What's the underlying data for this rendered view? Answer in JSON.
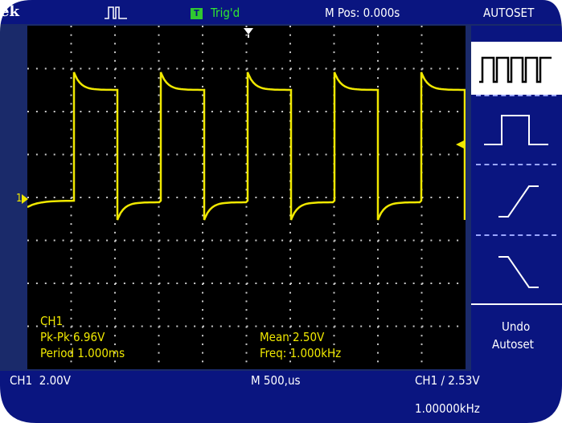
{
  "header": {
    "brand": "ek",
    "acq_icon": "acquisition-waveform-icon",
    "trigger_flag": "T",
    "trigger_status": "Trig'd",
    "position": "M Pos: 0.000s",
    "menu_title": "AUTOSET"
  },
  "measurements": {
    "channel": "CH1",
    "pk_pk": "Pk-Pk 6.96V",
    "period": "Period 1.000ms",
    "mean": "Mean 2.50V",
    "freq": "Freq: 1.000kHz"
  },
  "status": {
    "ch1_scale": "CH1  2.00V",
    "timebase": "M 500,us",
    "trigger": "CH1 ∕ 2.53V",
    "trigger_freq": "1.00000kHz"
  },
  "menu": {
    "items": [
      {
        "icon": "multi-cycle-square-wave-icon"
      },
      {
        "icon": "single-cycle-square-wave-icon"
      },
      {
        "icon": "rising-edge-icon"
      },
      {
        "icon": "falling-edge-icon"
      }
    ],
    "undo_line1": "Undo",
    "undo_line2": "Autoset"
  },
  "markers": {
    "channel_marker": "1",
    "trigger_position_icon": "trigger-position-arrow-icon",
    "trigger_level_icon": "trigger-level-arrow-icon"
  },
  "colors": {
    "trace": "#f0e800",
    "background": "#0a1580",
    "grid_dots": "#c8c8c8",
    "trig_flag": "#30c830"
  }
}
